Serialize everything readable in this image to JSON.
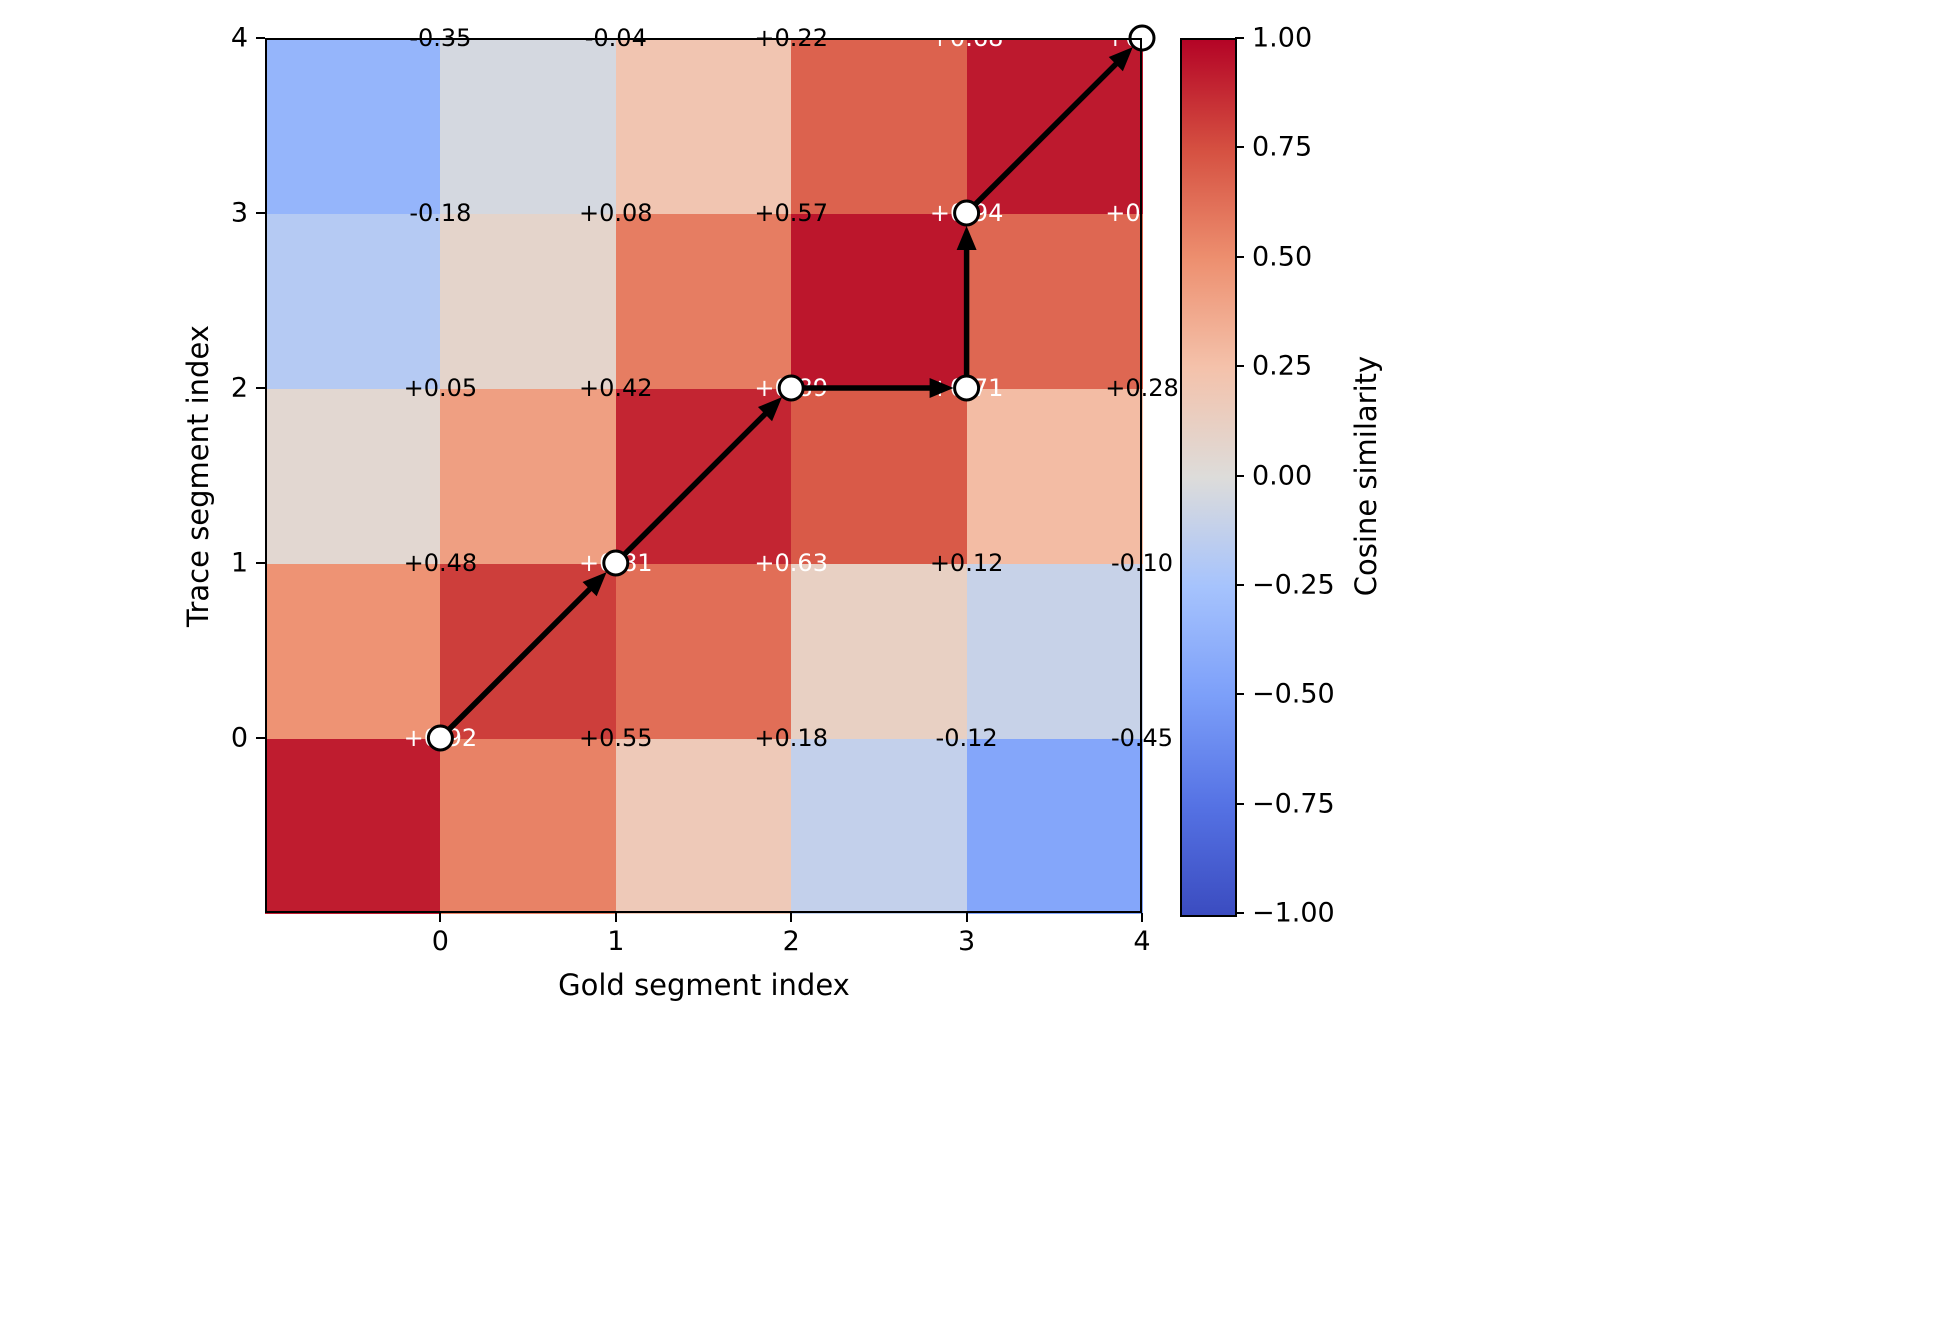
{
  "figure": {
    "background": "#ffffff",
    "x_axis": {
      "label": "Gold segment index",
      "ticks": [
        "0",
        "1",
        "2",
        "3",
        "4"
      ]
    },
    "y_axis": {
      "label": "Trace segment index",
      "ticks": [
        "0",
        "1",
        "2",
        "3",
        "4"
      ]
    }
  },
  "colorbar": {
    "label": "Cosine similarity",
    "ticks": [
      "1.00",
      "0.75",
      "0.50",
      "0.25",
      "0.00",
      "−0.25",
      "−0.50",
      "−0.75",
      "−1.00"
    ],
    "min_color": "#3b4cc0",
    "mid_color": "#dddcda",
    "max_color": "#b40426"
  },
  "chart_data": {
    "type": "heatmap",
    "title": "",
    "xlabel": "Gold segment index",
    "ylabel": "Trace segment index",
    "colorbar_label": "Cosine similarity",
    "x_values": [
      0,
      1,
      2,
      3,
      4
    ],
    "y_values": [
      0,
      1,
      2,
      3,
      4
    ],
    "value_range": [
      -1,
      1
    ],
    "matrix_row_meaning": "row index = trace segment index (row 0 is bottom row), column index = gold segment index",
    "matrix": [
      [
        0.92,
        0.55,
        0.18,
        -0.12,
        -0.45
      ],
      [
        0.48,
        0.81,
        0.63,
        0.12,
        -0.1
      ],
      [
        0.05,
        0.42,
        0.89,
        0.71,
        0.28
      ],
      [
        -0.18,
        0.08,
        0.57,
        0.94,
        0.66
      ],
      [
        -0.35,
        -0.04,
        0.22,
        0.68,
        0.93
      ]
    ],
    "annotation_format": "signed two decimals, e.g. +0.92 / -0.35",
    "annotation_white_text_threshold": 0.6,
    "alignment_path": [
      [
        0,
        0
      ],
      [
        1,
        1
      ],
      [
        2,
        2
      ],
      [
        3,
        2
      ],
      [
        3,
        3
      ],
      [
        4,
        4
      ]
    ],
    "alignment_path_meaning": "points are [gold_index, trace_index]; black arrows connect consecutive points, white circular markers at each point",
    "colormap": "coolwarm",
    "colormap_stops": [
      [
        -1.0,
        "#3b4cc0"
      ],
      [
        -0.75,
        "#5572e4"
      ],
      [
        -0.5,
        "#7c9ff9"
      ],
      [
        -0.25,
        "#a6c3fd"
      ],
      [
        0.0,
        "#dddcda"
      ],
      [
        0.25,
        "#f4c2ab"
      ],
      [
        0.5,
        "#ed8f6f"
      ],
      [
        0.75,
        "#d55041"
      ],
      [
        1.0,
        "#b40426"
      ]
    ],
    "legend": "none",
    "grid": false
  }
}
